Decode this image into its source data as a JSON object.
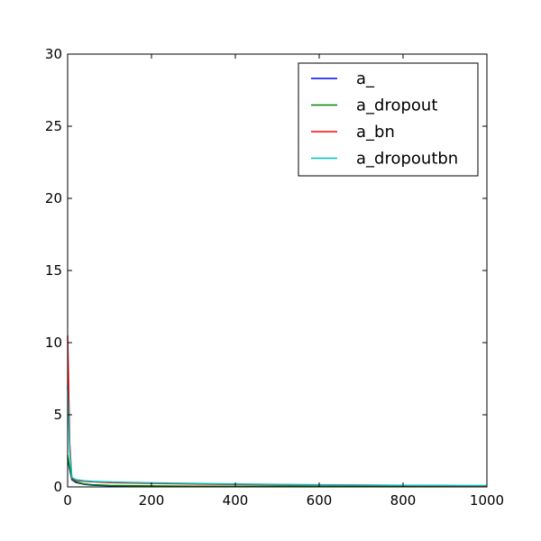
{
  "chart_data": {
    "type": "line",
    "title": "",
    "xlabel": "",
    "ylabel": "",
    "xlim": [
      0,
      1000
    ],
    "ylim": [
      0,
      30
    ],
    "xticks": [
      0,
      200,
      400,
      600,
      800,
      1000
    ],
    "yticks": [
      0,
      5,
      10,
      15,
      20,
      25,
      30
    ],
    "grid": false,
    "legend_position": "top-right",
    "series": [
      {
        "name": "a_",
        "color": "#0000ff",
        "x": [
          0,
          5,
          10,
          20,
          40,
          60,
          100,
          200,
          300,
          400,
          500,
          600,
          700,
          800,
          900,
          1000
        ],
        "y": [
          2.0,
          1.2,
          0.5,
          0.3,
          0.18,
          0.12,
          0.08,
          0.05,
          0.04,
          0.03,
          0.03,
          0.02,
          0.02,
          0.02,
          0.02,
          0.02
        ]
      },
      {
        "name": "a_dropout",
        "color": "#008000",
        "x": [
          0,
          5,
          10,
          20,
          40,
          60,
          100,
          200,
          300,
          400,
          500,
          600,
          700,
          800,
          900,
          1000
        ],
        "y": [
          2.2,
          1.3,
          0.55,
          0.35,
          0.2,
          0.15,
          0.1,
          0.07,
          0.05,
          0.04,
          0.04,
          0.03,
          0.03,
          0.03,
          0.03,
          0.03
        ]
      },
      {
        "name": "a_bn",
        "color": "#ff0000",
        "x": [
          0,
          5,
          10,
          20,
          40,
          60,
          100,
          200,
          300,
          400,
          500,
          600,
          700,
          800,
          900,
          1000
        ],
        "y": [
          10.5,
          3.0,
          0.6,
          0.45,
          0.38,
          0.35,
          0.3,
          0.24,
          0.2,
          0.17,
          0.15,
          0.13,
          0.11,
          0.1,
          0.09,
          0.08
        ]
      },
      {
        "name": "a_dropoutbn",
        "color": "#00bfbf",
        "x": [
          0,
          5,
          10,
          20,
          40,
          60,
          100,
          200,
          300,
          400,
          500,
          600,
          700,
          800,
          900,
          1000
        ],
        "y": [
          7.0,
          2.5,
          0.65,
          0.5,
          0.42,
          0.38,
          0.34,
          0.28,
          0.24,
          0.2,
          0.17,
          0.15,
          0.13,
          0.11,
          0.1,
          0.09
        ]
      }
    ]
  }
}
